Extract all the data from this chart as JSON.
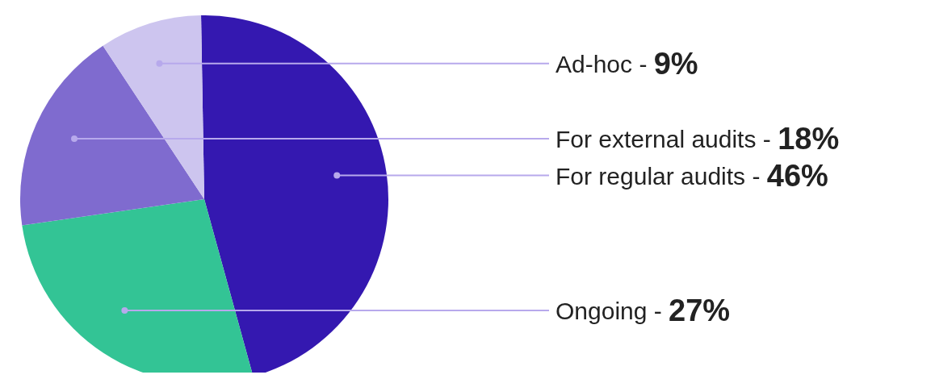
{
  "chart_data": {
    "type": "pie",
    "categories": [
      "For regular audits -",
      "Ongoing -",
      "For external audits -",
      "Ad-hoc -"
    ],
    "values": [
      46,
      27,
      18,
      9
    ],
    "colors": [
      "#3418b0",
      "#33c495",
      "#7f6bcf",
      "#cdc5ef"
    ],
    "value_labels": [
      "46%",
      "27%",
      "18%",
      "9%"
    ]
  }
}
